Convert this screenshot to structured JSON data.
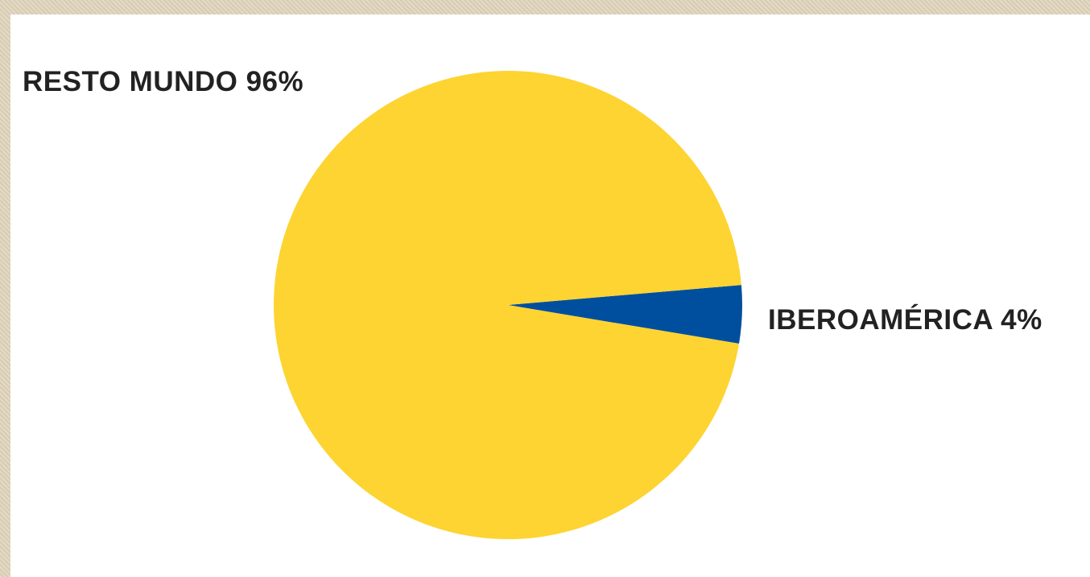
{
  "colors": {
    "background_frame": "#ded2b8",
    "panel": "#ffffff",
    "label_text": "#222222"
  },
  "chart_data": {
    "type": "pie",
    "title": "",
    "slices": [
      {
        "name": "RESTO MUNDO",
        "value": 96,
        "color": "#fdd431"
      },
      {
        "name": "IBEROAMÉRICA",
        "value": 4,
        "color": "#004f9e"
      }
    ],
    "labels": [
      "RESTO MUNDO 96%",
      "IBEROAMÉRICA 4%"
    ],
    "legend": "none"
  }
}
